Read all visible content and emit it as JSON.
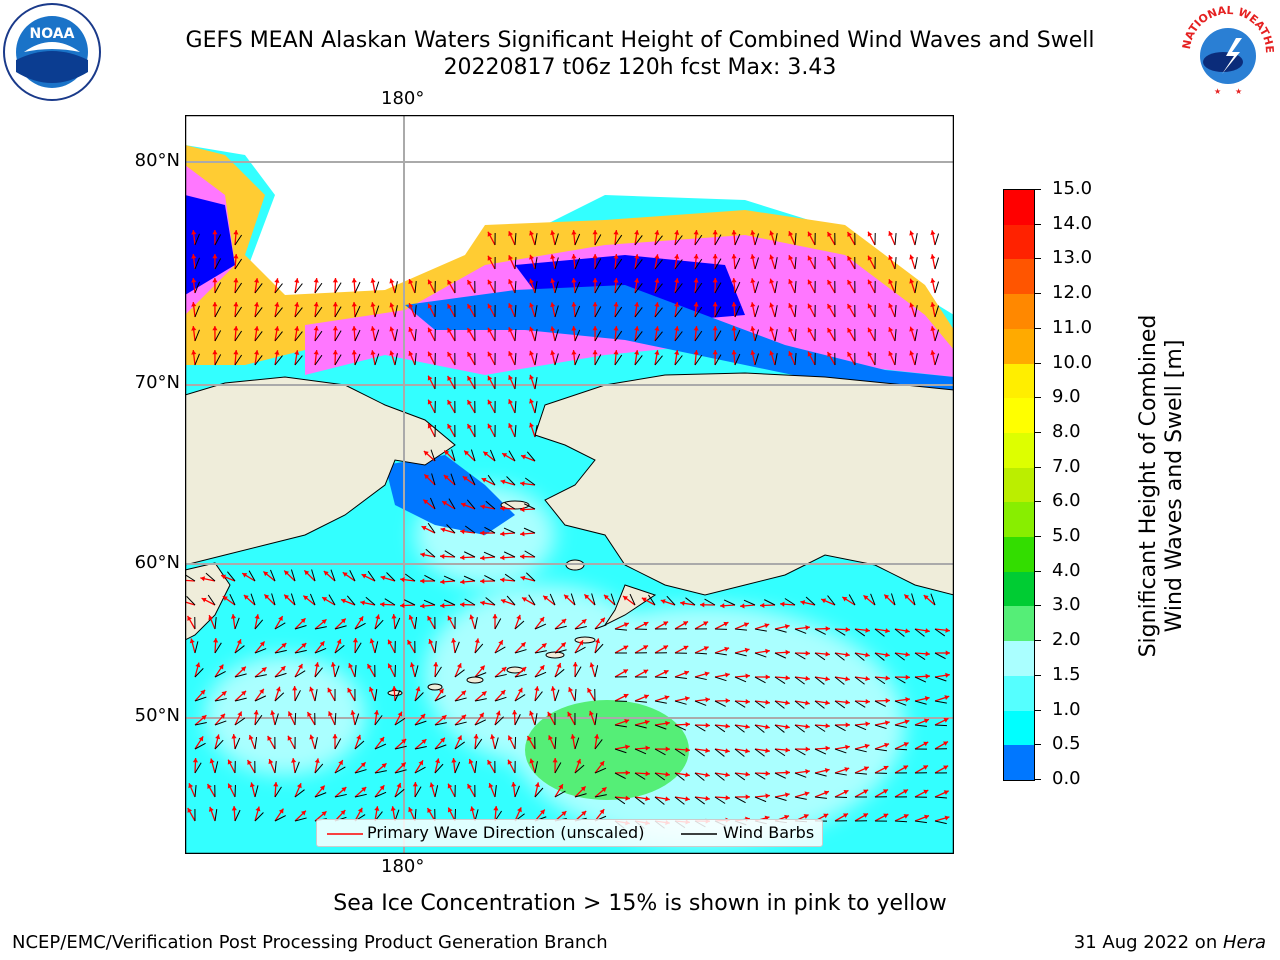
{
  "header": {
    "title_line1": "GEFS MEAN Alaskan Waters Significant Height of Combined Wind Waves and Swell",
    "title_line2": "20220817 t06z 120h fcst   Max: 3.43"
  },
  "map": {
    "lon_label_top": "180°",
    "lon_label_bottom": "180°",
    "lat_labels": [
      "80°N",
      "70°N",
      "60°N",
      "50°N"
    ],
    "colors": {
      "land": "#efedda",
      "water_base": "#33ffff",
      "water_light": "#aaffff",
      "high_wave": "#55ee77",
      "ice_pink": "#ff44ff",
      "ice_yellow": "#ffcc33",
      "deep_blue": "#0000ff",
      "mid_blue": "#0077ff"
    }
  },
  "legend": {
    "primary_wave_label": "Primary Wave Direction (unscaled)",
    "wind_barbs_label": "Wind Barbs",
    "primary_wave_color": "#ff0000",
    "wind_barbs_color": "#000000"
  },
  "colorbar": {
    "title_line1": "Significant Height of Combined",
    "title_line2": "Wind Waves and Swell [m]",
    "ticks": [
      "15.0",
      "14.0",
      "13.0",
      "12.0",
      "11.0",
      "10.0",
      "9.0",
      "8.0",
      "7.0",
      "6.0",
      "5.0",
      "4.0",
      "3.0",
      "2.0",
      "1.5",
      "1.0",
      "0.5",
      "0.0"
    ],
    "colors": [
      "#ff0000",
      "#ff2200",
      "#ff5500",
      "#ff8800",
      "#ffaa00",
      "#ffee00",
      "#ffff00",
      "#ddff00",
      "#bbee00",
      "#88ee00",
      "#33dd00",
      "#00cc33",
      "#55ee77",
      "#aaffff",
      "#55ffff",
      "#00ffff",
      "#0077ff",
      "#0000ff"
    ]
  },
  "notes": {
    "sea_ice": "Sea Ice Concentration > 15% is shown in pink to yellow"
  },
  "footer": {
    "left": "NCEP/EMC/Verification Post Processing Product Generation Branch",
    "right_prefix": "31 Aug 2022 on ",
    "right_machine": "Hera"
  },
  "logos": {
    "noaa": "NOAA",
    "nws_arc": "NATIONAL WEATHER SERVICE"
  }
}
